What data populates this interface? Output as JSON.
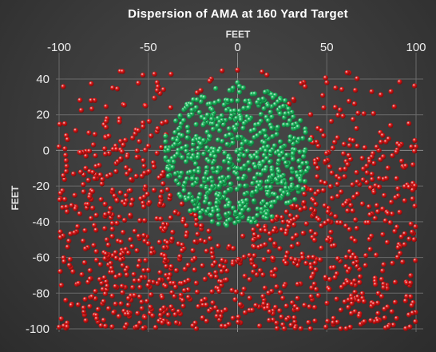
{
  "chart_data": {
    "type": "scatter",
    "title": "Dispersion of AMA at 160 Yard Target",
    "xlabel": "FEET",
    "ylabel": "FEET",
    "xlim": [
      -100,
      100
    ],
    "ylim": [
      -100,
      45
    ],
    "x_ticks": [
      -100,
      -50,
      0,
      50,
      100
    ],
    "y_ticks": [
      40,
      20,
      0,
      -20,
      -40,
      -60,
      -80,
      -100
    ],
    "grid": true,
    "x_axis_position": "top",
    "series": [
      {
        "color": "#20c064",
        "region": {
          "center": [
            0,
            -3
          ],
          "radius_x": 42,
          "radius_y_top": 40,
          "radius_y_bottom": 40
        },
        "count": 650,
        "sample_points": [
          [
            -20,
            30
          ],
          [
            0,
            38
          ],
          [
            18,
            32
          ],
          [
            -35,
            10
          ],
          [
            38,
            12
          ],
          [
            -30,
            -20
          ],
          [
            30,
            -22
          ],
          [
            -10,
            -38
          ],
          [
            10,
            -40
          ],
          [
            0,
            0
          ],
          [
            -15,
            15
          ],
          [
            15,
            10
          ],
          [
            5,
            -20
          ],
          [
            -5,
            -30
          ],
          [
            25,
            0
          ],
          [
            -25,
            0
          ]
        ]
      },
      {
        "color": "#e01818",
        "region": {
          "x_range": [
            -100,
            100
          ],
          "y_range": [
            -100,
            45
          ]
        },
        "count": 1100,
        "sample_points": [
          [
            -100,
            2
          ],
          [
            -98,
            -32
          ],
          [
            -90,
            -75
          ],
          [
            -80,
            28
          ],
          [
            -70,
            35
          ],
          [
            -60,
            -50
          ],
          [
            -45,
            38
          ],
          [
            -40,
            -70
          ],
          [
            -20,
            -85
          ],
          [
            0,
            45
          ],
          [
            20,
            -90
          ],
          [
            40,
            -60
          ],
          [
            55,
            35
          ],
          [
            60,
            -75
          ],
          [
            80,
            10
          ],
          [
            86,
            33
          ],
          [
            95,
            -20
          ],
          [
            97,
            -82
          ],
          [
            99,
            -50
          ],
          [
            100,
            2
          ],
          [
            -85,
            -10
          ],
          [
            -55,
            5
          ],
          [
            45,
            -5
          ],
          [
            70,
            -30
          ],
          [
            -30,
            -55
          ],
          [
            10,
            -65
          ],
          [
            -10,
            -95
          ],
          [
            30,
            -98
          ]
        ]
      }
    ]
  }
}
